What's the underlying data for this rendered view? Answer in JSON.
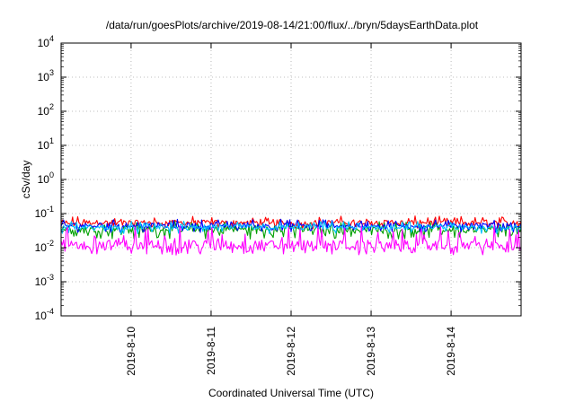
{
  "chart_data": {
    "type": "line",
    "title": "/data/run/goesPlots/archive/2019-08-14/21:00/flux/../bryn/5daysEarthData.plot",
    "xlabel": "Coordinated Universal Time (UTC)",
    "ylabel": "cSv/day",
    "yscale": "log",
    "ylim": [
      0.0001,
      10000
    ],
    "y_ticks": [
      {
        "value": 0.0001,
        "base": "10",
        "exp": "-4"
      },
      {
        "value": 0.001,
        "base": "10",
        "exp": "-3"
      },
      {
        "value": 0.01,
        "base": "10",
        "exp": "-2"
      },
      {
        "value": 0.1,
        "base": "10",
        "exp": "-1"
      },
      {
        "value": 1,
        "base": "10",
        "exp": "0"
      },
      {
        "value": 10,
        "base": "10",
        "exp": "1"
      },
      {
        "value": 100,
        "base": "10",
        "exp": "2"
      },
      {
        "value": 1000,
        "base": "10",
        "exp": "3"
      },
      {
        "value": 10000,
        "base": "10",
        "exp": "4"
      }
    ],
    "xlim": [
      "2019-08-09 03:00",
      "2019-08-14 21:00"
    ],
    "x_ticks": [
      {
        "value": "2019-08-10 00:00",
        "label": "2019-8-10"
      },
      {
        "value": "2019-08-11 00:00",
        "label": "2019-8-11"
      },
      {
        "value": "2019-08-12 00:00",
        "label": "2019-8-12"
      },
      {
        "value": "2019-08-13 00:00",
        "label": "2019-8-13"
      },
      {
        "value": "2019-08-14 00:00",
        "label": "2019-8-14"
      }
    ],
    "grid": true,
    "series": [
      {
        "color": "#ff0000",
        "median": 0.055,
        "low": 0.035,
        "high": 0.085
      },
      {
        "color": "#00a000",
        "median": 0.035,
        "low": 0.018,
        "high": 0.06
      },
      {
        "color": "#0000ff",
        "median": 0.045,
        "low": 0.028,
        "high": 0.07
      },
      {
        "color": "#00c0ff",
        "median": 0.04,
        "low": 0.025,
        "high": 0.06
      },
      {
        "color": "#ff00ff",
        "median": 0.012,
        "low": 0.006,
        "high": 0.045
      }
    ]
  }
}
